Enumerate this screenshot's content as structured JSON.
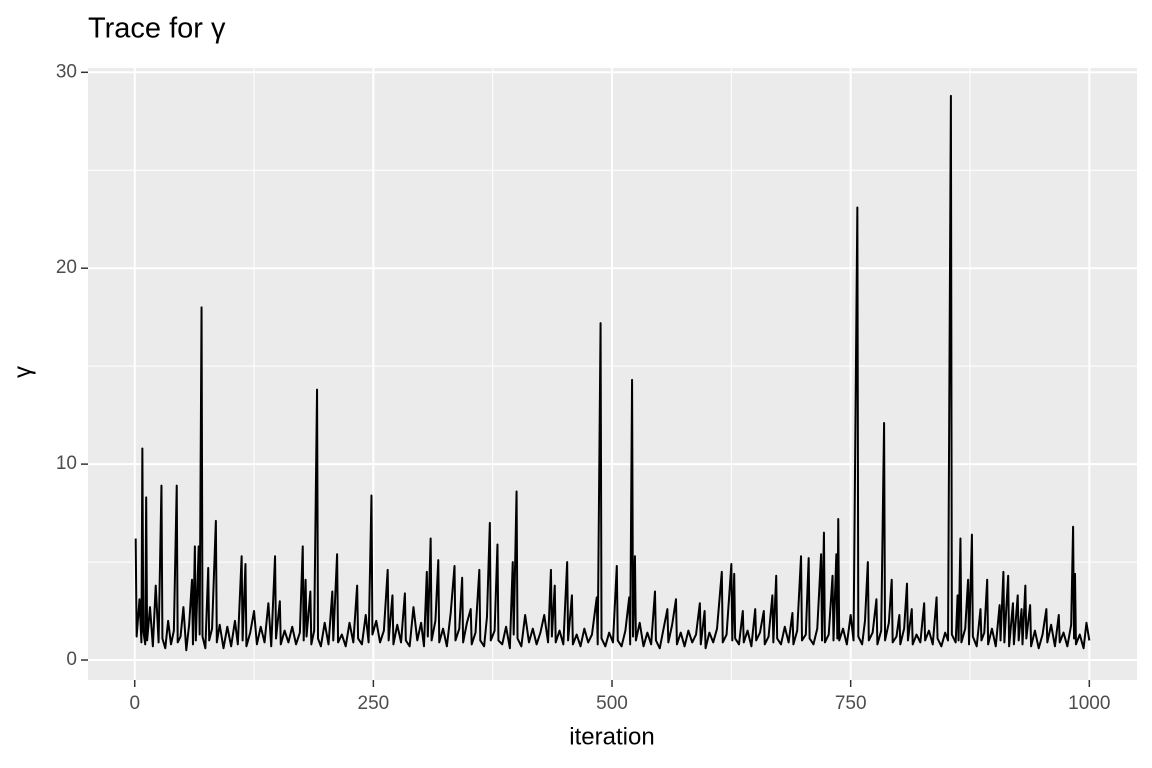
{
  "chart_data": {
    "type": "line",
    "title": "Trace for γ",
    "x_label": "iteration",
    "y_label": "γ",
    "color": "#000000",
    "grid": true,
    "xlim": [
      -48.95,
      1049.95
    ],
    "xticks": [
      0,
      250,
      500,
      750,
      1000
    ],
    "xminor": [
      125,
      375,
      625,
      875
    ],
    "ylim": [
      -1.02,
      30.22
    ],
    "yticks": [
      0,
      10,
      20,
      30
    ],
    "yminor": [
      5,
      15,
      25
    ],
    "x": [
      1,
      2,
      5,
      7,
      8,
      9,
      11,
      12,
      13,
      16,
      19,
      22,
      25,
      28,
      29,
      32,
      35,
      38,
      41,
      44,
      45,
      48,
      51,
      54,
      57,
      60,
      61,
      63,
      64,
      67,
      68,
      70,
      71,
      74,
      77,
      78,
      81,
      85,
      86,
      89,
      93,
      97,
      101,
      105,
      108,
      112,
      113,
      116,
      117,
      121,
      125,
      128,
      132,
      136,
      140,
      143,
      147,
      148,
      152,
      153,
      157,
      161,
      165,
      169,
      173,
      176,
      177,
      179,
      180,
      184,
      185,
      188,
      191,
      192,
      195,
      199,
      203,
      207,
      208,
      212,
      213,
      217,
      221,
      225,
      229,
      233,
      234,
      238,
      242,
      245,
      248,
      249,
      253,
      257,
      261,
      265,
      266,
      270,
      271,
      275,
      279,
      283,
      284,
      288,
      292,
      296,
      300,
      303,
      306,
      307,
      310,
      311,
      315,
      318,
      319,
      323,
      327,
      331,
      335,
      336,
      340,
      343,
      344,
      348,
      352,
      353,
      357,
      361,
      362,
      366,
      369,
      372,
      373,
      377,
      380,
      381,
      385,
      389,
      393,
      396,
      397,
      400,
      401,
      405,
      409,
      413,
      417,
      421,
      425,
      429,
      433,
      436,
      437,
      440,
      441,
      445,
      449,
      453,
      454,
      458,
      459,
      463,
      467,
      471,
      475,
      479,
      484,
      485,
      488,
      489,
      493,
      497,
      501,
      505,
      506,
      510,
      514,
      518,
      519,
      521,
      522,
      524,
      525,
      529,
      533,
      537,
      541,
      545,
      546,
      550,
      554,
      558,
      559,
      563,
      567,
      568,
      572,
      576,
      580,
      584,
      588,
      592,
      593,
      597,
      598,
      602,
      606,
      610,
      615,
      616,
      620,
      625,
      626,
      628,
      629,
      633,
      637,
      638,
      642,
      646,
      650,
      651,
      655,
      659,
      660,
      664,
      668,
      669,
      672,
      673,
      677,
      681,
      685,
      689,
      690,
      694,
      698,
      699,
      703,
      706,
      707,
      711,
      715,
      719,
      720,
      722,
      723,
      727,
      731,
      732,
      735,
      736,
      737,
      738,
      742,
      746,
      750,
      753,
      757,
      758,
      762,
      765,
      768,
      769,
      773,
      777,
      778,
      782,
      785,
      786,
      790,
      793,
      794,
      798,
      801,
      802,
      806,
      809,
      810,
      814,
      815,
      819,
      823,
      827,
      828,
      832,
      836,
      840,
      841,
      845,
      849,
      852,
      855,
      856,
      860,
      862,
      863,
      865,
      866,
      870,
      873,
      874,
      877,
      878,
      882,
      886,
      887,
      890,
      893,
      894,
      898,
      902,
      906,
      907,
      910,
      911,
      915,
      916,
      920,
      921,
      925,
      926,
      929,
      930,
      933,
      934,
      938,
      939,
      943,
      947,
      951,
      955,
      956,
      960,
      964,
      968,
      969,
      973,
      977,
      981,
      983,
      984,
      985,
      986,
      990,
      994,
      997,
      1000
    ],
    "values": [
      6.2,
      1.2,
      3.1,
      0.9,
      10.8,
      1.5,
      0.8,
      8.3,
      1.0,
      2.7,
      0.7,
      3.8,
      0.9,
      8.9,
      1.1,
      0.6,
      2.0,
      0.8,
      1.5,
      8.9,
      0.9,
      1.2,
      2.7,
      0.5,
      1.8,
      4.1,
      0.8,
      5.8,
      1.0,
      5.8,
      1.3,
      18.0,
      1.2,
      0.6,
      4.7,
      1.0,
      1.6,
      7.1,
      0.9,
      1.8,
      0.6,
      1.7,
      0.7,
      2.0,
      0.8,
      5.3,
      1.0,
      4.9,
      0.7,
      1.4,
      2.5,
      0.8,
      1.7,
      0.9,
      2.9,
      0.7,
      5.3,
      1.1,
      3.0,
      0.8,
      1.5,
      0.9,
      1.7,
      0.8,
      1.4,
      5.8,
      1.0,
      4.1,
      1.2,
      3.5,
      0.8,
      1.5,
      13.8,
      1.1,
      0.7,
      1.9,
      0.8,
      3.5,
      1.0,
      5.4,
      0.9,
      1.3,
      0.7,
      1.9,
      0.9,
      3.8,
      1.1,
      0.8,
      2.3,
      0.9,
      8.4,
      1.3,
      2.0,
      0.9,
      1.5,
      4.6,
      1.0,
      3.3,
      0.8,
      1.8,
      0.9,
      3.4,
      1.0,
      0.7,
      2.7,
      1.0,
      1.9,
      0.7,
      4.5,
      1.2,
      6.2,
      1.0,
      2.0,
      5.1,
      0.9,
      1.6,
      0.7,
      2.4,
      4.8,
      1.0,
      1.6,
      4.2,
      0.9,
      1.9,
      2.6,
      0.8,
      1.4,
      4.6,
      1.0,
      0.7,
      2.2,
      7.0,
      1.0,
      1.5,
      5.9,
      1.0,
      0.8,
      1.7,
      0.6,
      5.0,
      1.3,
      8.6,
      1.1,
      0.7,
      2.3,
      0.9,
      1.6,
      0.8,
      1.4,
      2.3,
      0.9,
      4.6,
      1.2,
      3.8,
      0.9,
      1.5,
      0.8,
      5.0,
      1.0,
      3.3,
      0.8,
      1.3,
      0.7,
      1.6,
      0.9,
      1.3,
      3.2,
      0.8,
      17.2,
      1.1,
      0.7,
      1.4,
      0.9,
      4.8,
      1.0,
      0.7,
      1.5,
      3.2,
      0.8,
      14.3,
      1.2,
      5.3,
      1.0,
      1.9,
      0.7,
      1.4,
      0.8,
      3.5,
      1.0,
      0.6,
      1.6,
      2.6,
      0.9,
      1.8,
      3.1,
      0.8,
      1.4,
      0.7,
      1.5,
      0.9,
      1.3,
      2.9,
      0.8,
      2.5,
      0.6,
      1.4,
      0.9,
      1.6,
      4.5,
      0.9,
      1.3,
      4.9,
      1.0,
      4.4,
      1.1,
      0.8,
      2.5,
      0.9,
      1.5,
      0.7,
      2.6,
      1.0,
      1.4,
      2.5,
      0.8,
      1.2,
      3.3,
      0.9,
      4.3,
      1.1,
      0.8,
      1.7,
      0.9,
      2.4,
      0.8,
      1.5,
      5.3,
      1.0,
      1.3,
      5.2,
      1.1,
      0.8,
      1.6,
      5.4,
      1.0,
      6.5,
      0.9,
      1.3,
      4.3,
      1.0,
      5.4,
      1.1,
      7.2,
      1.0,
      1.6,
      0.8,
      2.3,
      1.0,
      23.1,
      1.2,
      0.8,
      2.0,
      5.0,
      1.0,
      1.4,
      3.1,
      0.8,
      1.5,
      12.1,
      1.0,
      1.9,
      4.1,
      0.9,
      1.2,
      2.3,
      0.8,
      1.6,
      3.9,
      1.0,
      2.6,
      0.8,
      1.3,
      0.9,
      2.9,
      1.0,
      1.5,
      0.8,
      3.2,
      1.1,
      0.7,
      1.4,
      1.0,
      28.8,
      1.3,
      0.9,
      3.3,
      1.0,
      6.2,
      0.9,
      1.6,
      4.1,
      0.8,
      6.4,
      1.2,
      0.7,
      2.6,
      1.0,
      1.4,
      4.1,
      0.8,
      1.6,
      0.7,
      2.8,
      1.0,
      4.5,
      0.9,
      4.3,
      0.7,
      2.9,
      0.8,
      3.3,
      1.0,
      2.6,
      0.8,
      3.8,
      1.1,
      2.8,
      0.7,
      1.5,
      0.6,
      1.3,
      2.6,
      0.9,
      1.8,
      0.7,
      2.3,
      0.9,
      1.4,
      0.7,
      1.8,
      6.8,
      1.1,
      4.4,
      0.8,
      1.3,
      0.6,
      1.9,
      1.0
    ]
  }
}
